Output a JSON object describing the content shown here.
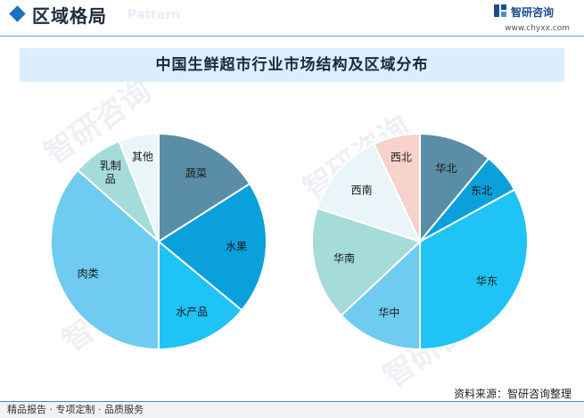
{
  "header": {
    "section_title": "区域格局",
    "section_subtitle": "Pattern",
    "logo_text": "智研咨询",
    "logo_url": "www.chyxx.com"
  },
  "banner": {
    "title": "中国生鲜超市行业市场结构及区域分布"
  },
  "watermark": "智研咨询",
  "footer": {
    "source": "资料来源：智研咨询整理",
    "tagline": "精品报告 · 专项定制 · 品质服务"
  },
  "chart_data": [
    {
      "type": "pie",
      "title": "",
      "labels": [
        "蔬菜",
        "水果",
        "水产品",
        "肉类",
        "乳制品",
        "其他"
      ],
      "values": [
        16,
        20,
        14,
        36.5,
        7.5,
        6
      ],
      "colors": [
        "#5a8ea6",
        "#0aa0dc",
        "#1fc3f5",
        "#6fcbf0",
        "#a5dbd9",
        "#e9f5f8"
      ],
      "label_names": [
        "slice-label-vegetables",
        "slice-label-fruit",
        "slice-label-seafood",
        "slice-label-meat",
        "slice-label-dairy",
        "slice-label-other"
      ]
    },
    {
      "type": "pie",
      "title": "",
      "labels": [
        "华北",
        "东北",
        "华东",
        "华中",
        "华南",
        "西南",
        "西北"
      ],
      "values": [
        11,
        6,
        33,
        13,
        17,
        13,
        7
      ],
      "colors": [
        "#5a8ea6",
        "#0aa0dc",
        "#1fc3f5",
        "#6fcbf0",
        "#a5dbd9",
        "#e9f5f8",
        "#f6d2ca"
      ],
      "label_names": [
        "slice-label-north",
        "slice-label-northeast",
        "slice-label-east",
        "slice-label-central",
        "slice-label-south",
        "slice-label-southwest",
        "slice-label-northwest"
      ]
    }
  ]
}
